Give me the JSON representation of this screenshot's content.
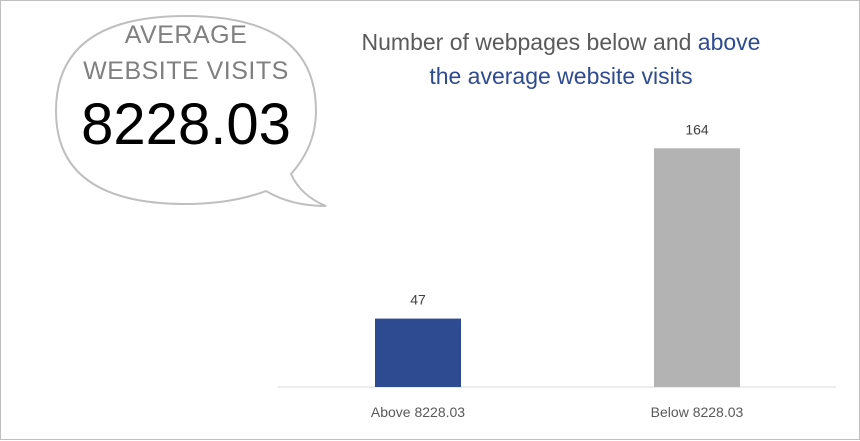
{
  "bubble": {
    "label_line1": "AVERAGE",
    "label_line2": "WEBSITE VISITS",
    "value": "8228.03"
  },
  "chart_data": {
    "type": "bar",
    "title_part1": "Number of webpages below and",
    "title_part2": "above",
    "title_part3": "the average website visits",
    "categories": [
      "Above 8228.03",
      "Below 8228.03"
    ],
    "values": [
      47,
      164
    ],
    "data_labels": [
      "47",
      "164"
    ],
    "colors": [
      "#2e4a91",
      "#b3b3b3"
    ],
    "accent_color": "#2e4a91",
    "ylim": [
      0,
      180
    ],
    "grid": false,
    "legend": "none"
  }
}
